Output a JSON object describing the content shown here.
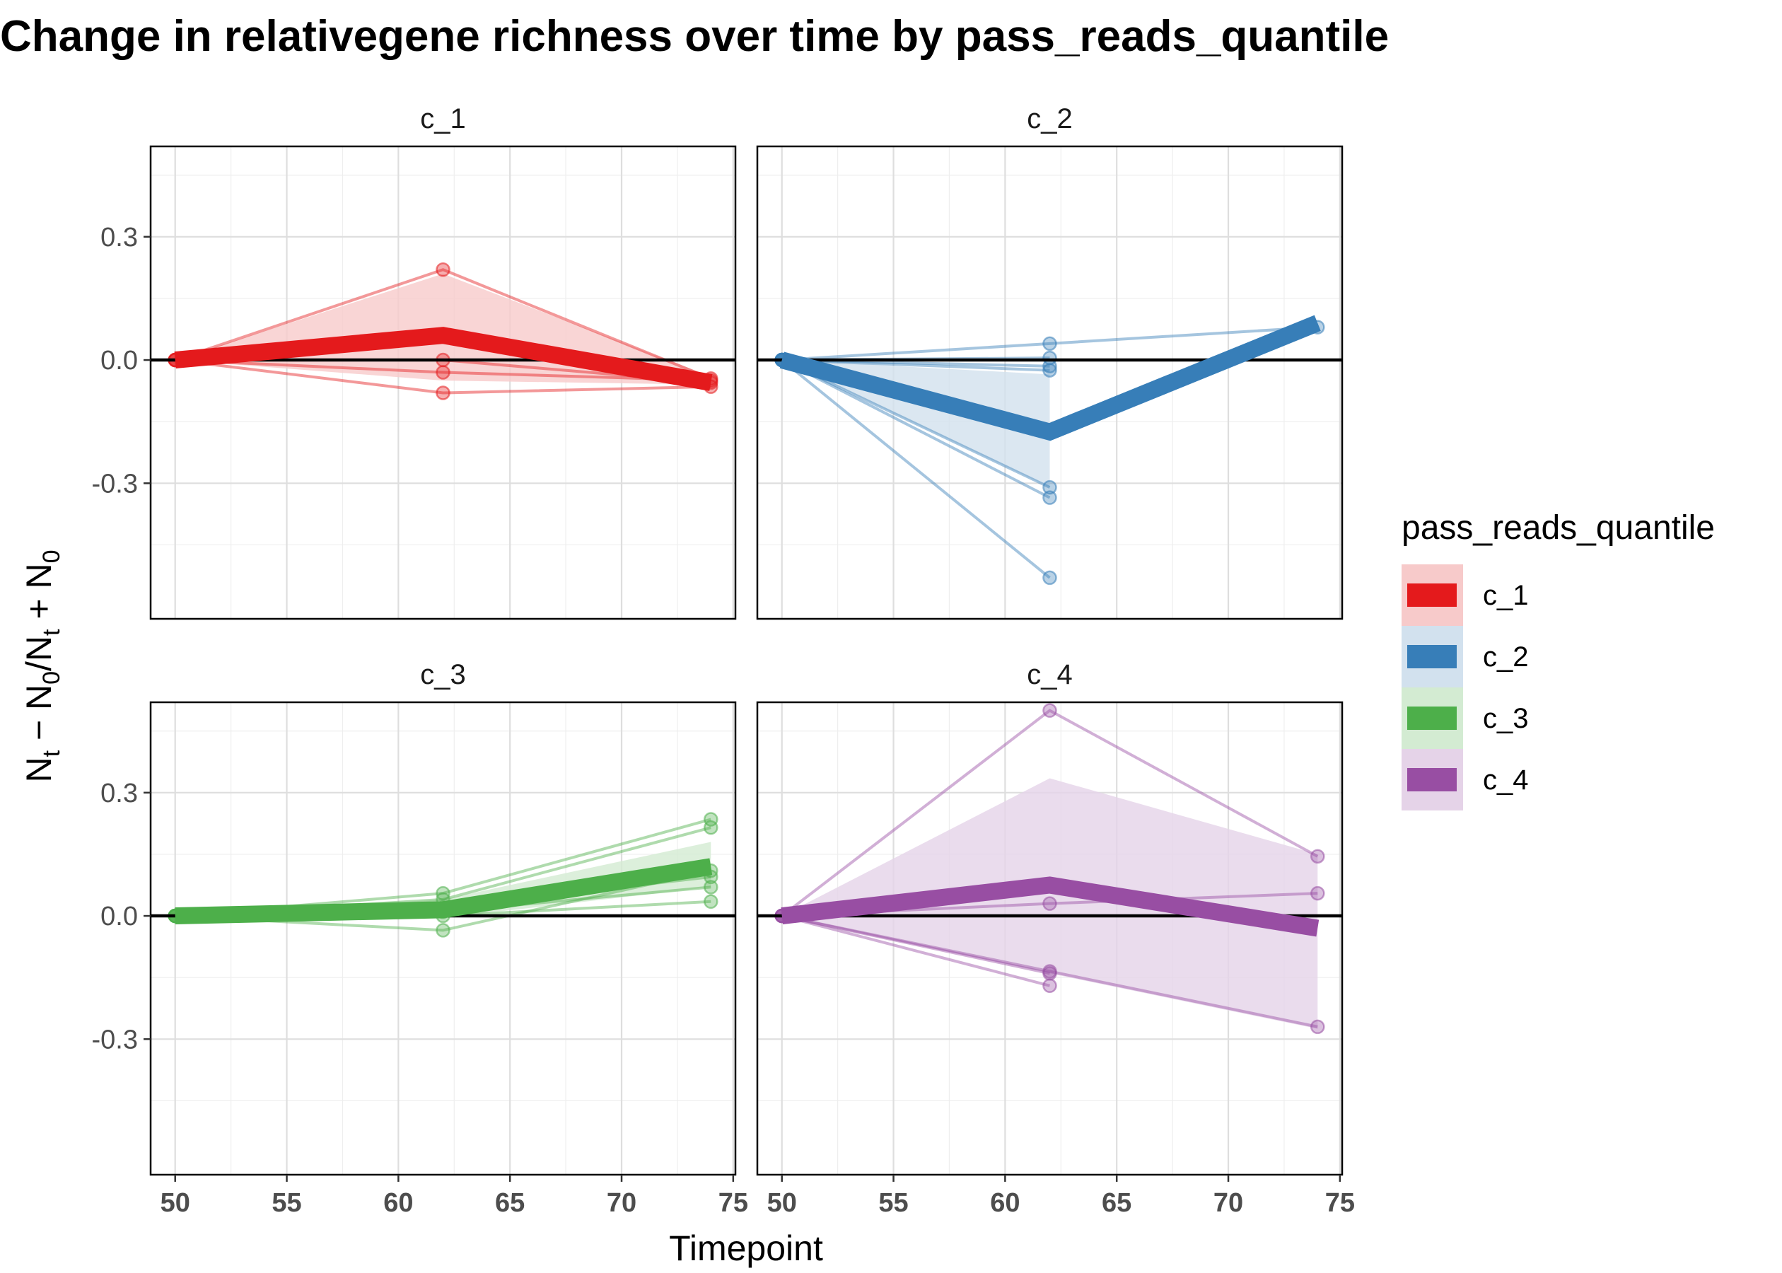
{
  "chart_data": {
    "type": "line",
    "title": "Change in relativegene richness over time by pass_reads_quantile",
    "xlabel": "Timepoint",
    "ylabel_parts": [
      "N",
      "t",
      " − N",
      "0",
      "/N",
      "t",
      " + N",
      "0"
    ],
    "xlim": [
      48.9,
      75.1
    ],
    "ylim": [
      -0.63,
      0.52
    ],
    "x_ticks": [
      50,
      55,
      60,
      65,
      70,
      75
    ],
    "y_ticks": [
      -0.3,
      0.0,
      0.3
    ],
    "y_tick_labels": [
      "-0.3",
      "0.0",
      "0.3"
    ],
    "reference_line_y": 0,
    "facet_layout": "2x2",
    "grid": true,
    "legend": {
      "title": "pass_reads_quantile",
      "position": "right",
      "entries": [
        {
          "label": "c_1",
          "color": "#E41A1C",
          "ribbon": "#F7CACA"
        },
        {
          "label": "c_2",
          "color": "#377EB8",
          "ribbon": "#D2E1EE"
        },
        {
          "label": "c_3",
          "color": "#4DAF4A",
          "ribbon": "#D3EBD2"
        },
        {
          "label": "c_4",
          "color": "#984EA3",
          "ribbon": "#E5D3E8"
        }
      ]
    },
    "panels": [
      {
        "name": "c_1",
        "color": "#E41A1C",
        "ribbon_color": "#F7CACA",
        "mean": [
          {
            "x": 50,
            "y": 0.0
          },
          {
            "x": 62,
            "y": 0.06
          },
          {
            "x": 74,
            "y": -0.055
          }
        ],
        "ribbon": [
          {
            "x": 50,
            "lo": 0.0,
            "hi": 0.0
          },
          {
            "x": 62,
            "lo": -0.05,
            "hi": 0.21
          },
          {
            "x": 74,
            "lo": -0.06,
            "hi": -0.04
          }
        ],
        "subjects": [
          [
            {
              "x": 50,
              "y": 0.0
            },
            {
              "x": 62,
              "y": 0.22
            },
            {
              "x": 74,
              "y": -0.045
            }
          ],
          [
            {
              "x": 50,
              "y": 0.0
            },
            {
              "x": 62,
              "y": 0.0
            },
            {
              "x": 74,
              "y": -0.055
            }
          ],
          [
            {
              "x": 50,
              "y": 0.0
            },
            {
              "x": 62,
              "y": -0.08
            },
            {
              "x": 74,
              "y": -0.065
            }
          ],
          [
            {
              "x": 50,
              "y": 0.0
            },
            {
              "x": 62,
              "y": -0.03
            },
            {
              "x": 74,
              "y": -0.05
            }
          ]
        ]
      },
      {
        "name": "c_2",
        "color": "#377EB8",
        "ribbon_color": "#D2E1EE",
        "mean": [
          {
            "x": 50,
            "y": 0.0
          },
          {
            "x": 62,
            "y": -0.175
          },
          {
            "x": 74,
            "y": 0.09
          }
        ],
        "ribbon": [
          {
            "x": 50,
            "lo": 0.0,
            "hi": 0.0
          },
          {
            "x": 62,
            "lo": -0.31,
            "hi": -0.035
          }
        ],
        "subjects": [
          [
            {
              "x": 50,
              "y": 0.0
            },
            {
              "x": 62,
              "y": 0.04
            },
            {
              "x": 74,
              "y": 0.08
            }
          ],
          [
            {
              "x": 50,
              "y": 0.0
            },
            {
              "x": 62,
              "y": -0.015
            }
          ],
          [
            {
              "x": 50,
              "y": 0.0
            },
            {
              "x": 62,
              "y": 0.005
            }
          ],
          [
            {
              "x": 50,
              "y": 0.0
            },
            {
              "x": 62,
              "y": -0.025
            }
          ],
          [
            {
              "x": 50,
              "y": 0.0
            },
            {
              "x": 62,
              "y": -0.31
            }
          ],
          [
            {
              "x": 50,
              "y": 0.0
            },
            {
              "x": 62,
              "y": -0.335
            }
          ],
          [
            {
              "x": 50,
              "y": 0.0
            },
            {
              "x": 62,
              "y": -0.53
            }
          ]
        ]
      },
      {
        "name": "c_3",
        "color": "#4DAF4A",
        "ribbon_color": "#D3EBD2",
        "mean": [
          {
            "x": 50,
            "y": 0.0
          },
          {
            "x": 62,
            "y": 0.015
          },
          {
            "x": 74,
            "y": 0.12
          }
        ],
        "ribbon": [
          {
            "x": 50,
            "lo": 0.0,
            "hi": 0.0
          },
          {
            "x": 62,
            "lo": -0.005,
            "hi": 0.04
          },
          {
            "x": 74,
            "lo": 0.07,
            "hi": 0.18
          }
        ],
        "subjects": [
          [
            {
              "x": 50,
              "y": 0.0
            },
            {
              "x": 62,
              "y": 0.055
            },
            {
              "x": 74,
              "y": 0.235
            }
          ],
          [
            {
              "x": 50,
              "y": 0.0
            },
            {
              "x": 62,
              "y": 0.04
            },
            {
              "x": 74,
              "y": 0.215
            }
          ],
          [
            {
              "x": 50,
              "y": 0.0
            },
            {
              "x": 62,
              "y": -0.035
            },
            {
              "x": 74,
              "y": 0.11
            }
          ],
          [
            {
              "x": 50,
              "y": 0.0
            },
            {
              "x": 62,
              "y": 0.02
            },
            {
              "x": 74,
              "y": 0.095
            }
          ],
          [
            {
              "x": 50,
              "y": 0.0
            },
            {
              "x": 62,
              "y": 0.01
            },
            {
              "x": 74,
              "y": 0.07
            }
          ],
          [
            {
              "x": 50,
              "y": 0.0
            },
            {
              "x": 62,
              "y": 0.0
            },
            {
              "x": 74,
              "y": 0.035
            }
          ]
        ]
      },
      {
        "name": "c_4",
        "color": "#984EA3",
        "ribbon_color": "#E5D3E8",
        "mean": [
          {
            "x": 50,
            "y": 0.0
          },
          {
            "x": 62,
            "y": 0.075
          },
          {
            "x": 74,
            "y": -0.03
          }
        ],
        "ribbon": [
          {
            "x": 50,
            "lo": 0.0,
            "hi": 0.0
          },
          {
            "x": 62,
            "lo": -0.14,
            "hi": 0.335
          },
          {
            "x": 74,
            "lo": -0.275,
            "hi": 0.15
          }
        ],
        "subjects": [
          [
            {
              "x": 50,
              "y": 0.0
            },
            {
              "x": 62,
              "y": 0.5
            },
            {
              "x": 74,
              "y": 0.145
            }
          ],
          [
            {
              "x": 50,
              "y": 0.0
            },
            {
              "x": 62,
              "y": 0.03
            },
            {
              "x": 74,
              "y": 0.055
            }
          ],
          [
            {
              "x": 50,
              "y": 0.0
            },
            {
              "x": 62,
              "y": -0.135
            },
            {
              "x": 74,
              "y": -0.27
            }
          ],
          [
            {
              "x": 50,
              "y": 0.0
            },
            {
              "x": 62,
              "y": -0.17
            }
          ],
          [
            {
              "x": 50,
              "y": 0.0
            },
            {
              "x": 62,
              "y": -0.14
            }
          ]
        ]
      }
    ]
  }
}
